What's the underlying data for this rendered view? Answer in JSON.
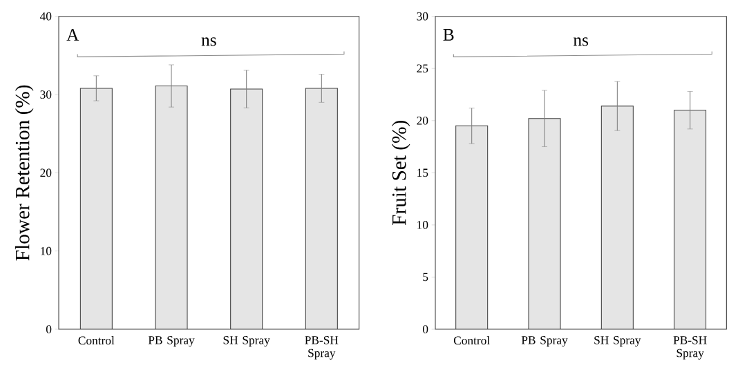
{
  "chart_data": [
    {
      "type": "bar",
      "ylabel": "Flower Retention (%)",
      "categories": [
        "Control",
        "PB Spray",
        "SH Spray",
        "PB-SH Spray"
      ],
      "values": [
        30.8,
        31.1,
        30.7,
        30.8
      ],
      "errors": [
        1.6,
        2.7,
        2.4,
        1.8
      ],
      "color": "#e5e5e5",
      "ylim": [
        0,
        40
      ],
      "yticks": [
        0,
        10,
        20,
        30,
        40
      ],
      "grid": false,
      "annotations": [
        "A",
        "ns"
      ]
    },
    {
      "type": "bar",
      "ylabel": "Fruit Set (%)",
      "categories": [
        "Control",
        "PB Spray",
        "SH Spray",
        "PB-SH Spray"
      ],
      "values": [
        19.5,
        20.2,
        21.4,
        21.0
      ],
      "errors": [
        1.7,
        2.7,
        2.35,
        1.8
      ],
      "color": "#e5e5e5",
      "ylim": [
        0,
        30
      ],
      "yticks": [
        0,
        5,
        10,
        15,
        20,
        25,
        30
      ],
      "grid": false,
      "annotations": [
        "B",
        "ns"
      ]
    }
  ]
}
